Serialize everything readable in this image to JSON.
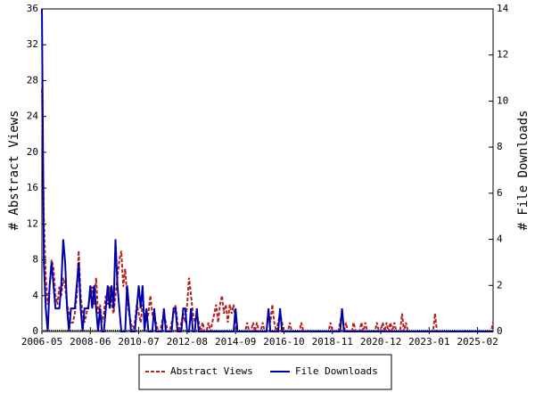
{
  "chart_data": {
    "type": "line",
    "x": [
      "2006-05",
      "2006-06",
      "2006-07",
      "2006-08",
      "2006-09",
      "2006-10",
      "2006-11",
      "2006-12",
      "2007-01",
      "2007-02",
      "2007-03",
      "2007-04",
      "2007-05",
      "2007-06",
      "2007-07",
      "2007-08",
      "2007-09",
      "2007-10",
      "2007-11",
      "2007-12",
      "2008-01",
      "2008-02",
      "2008-03",
      "2008-04",
      "2008-05",
      "2008-06",
      "2008-07",
      "2008-08",
      "2008-09",
      "2008-10",
      "2008-11",
      "2008-12",
      "2009-01",
      "2009-02",
      "2009-03",
      "2009-04",
      "2009-05",
      "2009-06",
      "2009-07",
      "2009-08",
      "2009-09",
      "2009-10",
      "2009-11",
      "2009-12",
      "2010-01",
      "2010-02",
      "2010-03",
      "2010-04",
      "2010-05",
      "2010-06",
      "2010-07",
      "2010-08",
      "2010-09",
      "2010-10",
      "2010-11",
      "2010-12",
      "2011-01",
      "2011-02",
      "2011-03",
      "2011-04",
      "2011-05",
      "2011-06",
      "2011-07",
      "2011-08",
      "2011-09",
      "2011-10",
      "2011-11",
      "2011-12",
      "2012-01",
      "2012-02",
      "2012-03",
      "2012-04",
      "2012-05",
      "2012-06",
      "2012-07",
      "2012-08",
      "2012-09",
      "2012-10",
      "2012-11",
      "2012-12",
      "2013-01",
      "2013-02",
      "2013-03",
      "2013-04",
      "2013-05",
      "2013-06",
      "2013-07",
      "2013-08",
      "2013-09",
      "2013-10",
      "2013-11",
      "2013-12",
      "2014-01",
      "2014-02",
      "2014-03",
      "2014-04",
      "2014-05",
      "2014-06",
      "2014-07",
      "2014-08",
      "2014-09",
      "2014-10",
      "2014-11",
      "2014-12",
      "2015-01",
      "2015-02",
      "2015-03",
      "2015-04",
      "2015-05",
      "2015-06",
      "2015-07",
      "2015-08",
      "2015-09",
      "2015-10",
      "2015-11",
      "2015-12",
      "2016-01",
      "2016-02",
      "2016-03",
      "2016-04",
      "2016-05",
      "2016-06",
      "2016-07",
      "2016-08",
      "2016-09",
      "2016-10",
      "2016-11",
      "2016-12",
      "2017-01",
      "2017-02",
      "2017-03",
      "2017-04",
      "2017-05",
      "2017-06",
      "2017-07",
      "2017-08",
      "2017-09",
      "2017-10",
      "2017-11",
      "2017-12",
      "2018-01",
      "2018-02",
      "2018-03",
      "2018-04",
      "2018-05",
      "2018-06",
      "2018-07",
      "2018-08",
      "2018-09",
      "2018-10",
      "2018-11",
      "2018-12",
      "2019-01",
      "2019-02",
      "2019-03",
      "2019-04",
      "2019-05",
      "2019-06",
      "2019-07",
      "2019-08",
      "2019-09",
      "2019-10",
      "2019-11",
      "2019-12",
      "2020-01",
      "2020-02",
      "2020-03",
      "2020-04",
      "2020-05",
      "2020-06",
      "2020-07",
      "2020-08",
      "2020-09",
      "2020-10",
      "2020-11",
      "2020-12",
      "2021-01",
      "2021-02",
      "2021-03",
      "2021-04",
      "2021-05",
      "2021-06",
      "2021-07",
      "2021-08",
      "2021-09",
      "2021-10",
      "2021-11",
      "2021-12",
      "2022-01",
      "2022-02",
      "2022-03",
      "2022-04",
      "2022-05",
      "2022-06",
      "2022-07",
      "2022-08",
      "2022-09",
      "2022-10",
      "2022-11",
      "2022-12",
      "2023-01",
      "2023-02",
      "2023-03",
      "2023-04",
      "2023-05",
      "2023-06",
      "2023-07",
      "2023-08",
      "2023-09",
      "2023-10",
      "2023-11",
      "2023-12",
      "2024-01",
      "2024-02",
      "2024-03",
      "2024-04",
      "2024-05",
      "2024-06",
      "2024-07",
      "2024-08",
      "2024-09",
      "2024-10",
      "2024-11",
      "2024-12",
      "2025-01",
      "2025-02",
      "2025-03",
      "2025-04",
      "2025-05",
      "2025-06",
      "2025-07",
      "2025-08",
      "2025-09",
      "2025-10"
    ],
    "xticks": [
      "2006-05",
      "2008-06",
      "2010-07",
      "2012-08",
      "2014-09",
      "2016-10",
      "2018-11",
      "2020-12",
      "2023-01",
      "2025-02"
    ],
    "ylabel": "# Abstract Views",
    "y2label": "# File Downloads",
    "ylim": [
      0,
      36
    ],
    "yticks": [
      0,
      4,
      8,
      12,
      16,
      20,
      24,
      28,
      32,
      36
    ],
    "y2lim": [
      0,
      14
    ],
    "y2ticks": [
      0,
      2,
      4,
      6,
      8,
      10,
      12,
      14
    ],
    "legend": "bottom",
    "series": [
      {
        "name": "Abstract Views",
        "color": "#b22222",
        "dash": true,
        "values": [
          27,
          13,
          6,
          3,
          5,
          8,
          7,
          4,
          3,
          5,
          4,
          6,
          5,
          3,
          2,
          1,
          1,
          2,
          4,
          9,
          4,
          2,
          1,
          2,
          3,
          4,
          5,
          3,
          6,
          2,
          3,
          1,
          2,
          4,
          3,
          5,
          3,
          2,
          4,
          6,
          8,
          9,
          5,
          7,
          4,
          2,
          1,
          0,
          1,
          3,
          2,
          1,
          3,
          2,
          1,
          2,
          4,
          2,
          1,
          1,
          0,
          0,
          1,
          2,
          1,
          0,
          0,
          1,
          2,
          3,
          1,
          0,
          1,
          2,
          1,
          3,
          6,
          4,
          2,
          1,
          2,
          1,
          0,
          1,
          0,
          0,
          1,
          0,
          1,
          2,
          3,
          1,
          3,
          4,
          2,
          3,
          1,
          3,
          2,
          3,
          1,
          0,
          0,
          0,
          0,
          0,
          1,
          0,
          0,
          1,
          0,
          1,
          0,
          0,
          1,
          0,
          0,
          2,
          1,
          3,
          1,
          0,
          1,
          2,
          1,
          0,
          0,
          0,
          1,
          0,
          0,
          0,
          0,
          0,
          1,
          0,
          0,
          0,
          0,
          0,
          0,
          0,
          0,
          0,
          0,
          0,
          0,
          0,
          0,
          1,
          0,
          0,
          0,
          0,
          1,
          2,
          0,
          1,
          0,
          0,
          0,
          1,
          0,
          0,
          0,
          1,
          0,
          1,
          0,
          0,
          0,
          0,
          0,
          1,
          0,
          0,
          1,
          0,
          1,
          0,
          1,
          0,
          1,
          0,
          0,
          0,
          2,
          0,
          1,
          0,
          0,
          0,
          0,
          0,
          0,
          0,
          0,
          0,
          0,
          0,
          0,
          0,
          0,
          2,
          0,
          0,
          0,
          0,
          0,
          0,
          0,
          0,
          0,
          0,
          0,
          0,
          0,
          0,
          0,
          0,
          0,
          0,
          0,
          0,
          0,
          0,
          0,
          0,
          0,
          0,
          0,
          0,
          0,
          1
        ]
      },
      {
        "name": "File Downloads",
        "color": "#0000aa",
        "axis": "y2",
        "values": [
          14,
          3,
          1,
          0,
          2,
          3,
          2,
          1,
          1,
          1,
          2,
          4,
          3,
          1,
          0,
          1,
          1,
          1,
          2,
          3,
          1,
          0,
          1,
          1,
          1,
          2,
          1,
          2,
          1,
          0,
          1,
          0,
          0,
          1,
          2,
          1,
          2,
          1,
          4,
          2,
          1,
          0,
          0,
          0,
          2,
          1,
          0,
          0,
          0,
          1,
          2,
          1,
          2,
          0,
          1,
          0,
          0,
          0,
          1,
          0,
          0,
          0,
          0,
          1,
          0,
          0,
          0,
          0,
          1,
          1,
          0,
          0,
          0,
          1,
          1,
          0,
          0,
          1,
          0,
          0,
          1,
          0,
          0,
          0,
          0,
          0,
          0,
          0,
          0,
          0,
          0,
          0,
          0,
          0,
          0,
          0,
          0,
          0,
          0,
          0,
          1,
          0,
          0,
          0,
          0,
          0,
          0,
          0,
          0,
          0,
          0,
          0,
          0,
          0,
          0,
          0,
          0,
          1,
          0,
          0,
          0,
          0,
          0,
          1,
          0,
          0,
          0,
          0,
          0,
          0,
          0,
          0,
          0,
          0,
          0,
          0,
          0,
          0,
          0,
          0,
          0,
          0,
          0,
          0,
          0,
          0,
          0,
          0,
          0,
          0,
          0,
          0,
          0,
          0,
          0,
          1,
          0,
          0,
          0,
          0,
          0,
          0,
          0,
          0,
          0,
          0,
          0,
          0,
          0,
          0,
          0,
          0,
          0,
          0,
          0,
          0,
          0,
          0,
          0,
          0,
          0,
          0,
          0,
          0,
          0,
          0,
          0,
          0,
          0,
          0,
          0,
          0,
          0,
          0,
          0,
          0,
          0,
          0,
          0,
          0,
          0,
          0,
          0,
          0,
          0,
          0,
          0,
          0,
          0,
          0,
          0,
          0,
          0,
          0,
          0,
          0,
          0,
          0,
          0,
          0,
          0,
          0,
          0,
          0,
          0,
          0,
          0,
          0,
          0,
          0,
          0,
          0,
          0,
          0
        ]
      }
    ]
  }
}
